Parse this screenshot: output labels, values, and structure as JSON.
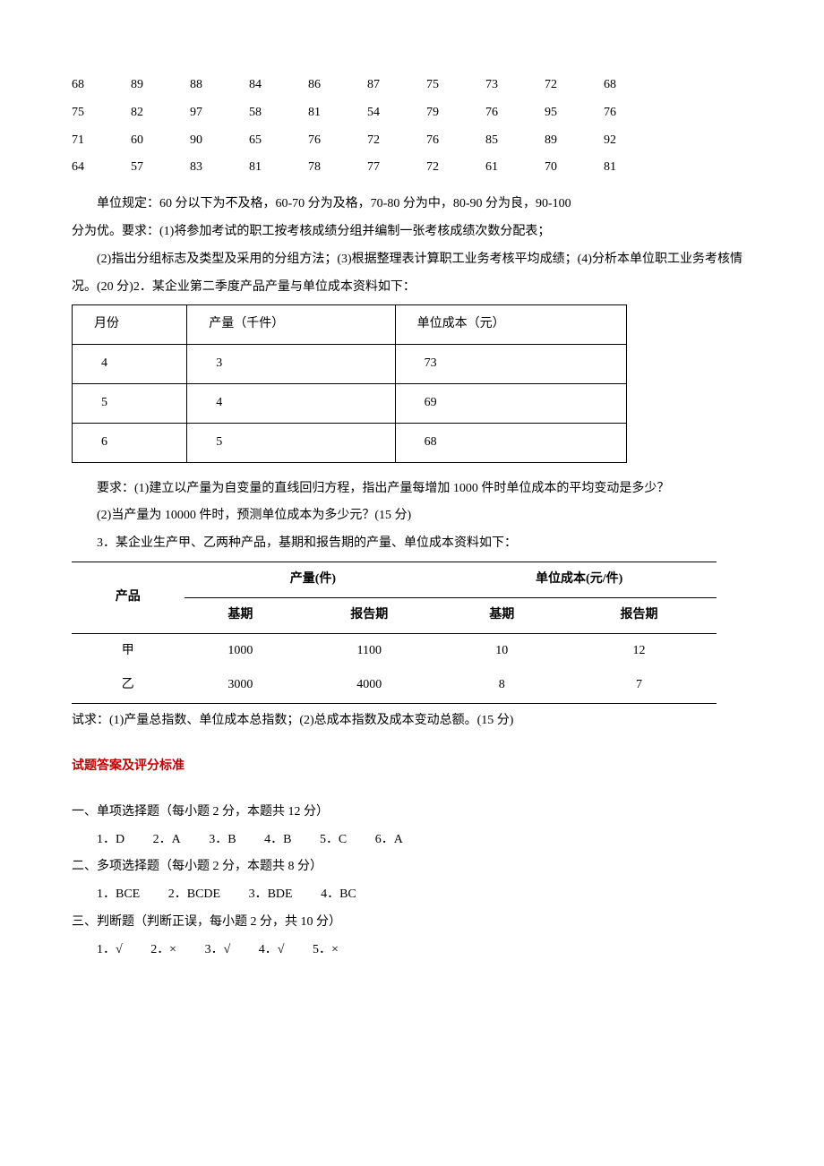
{
  "scores": {
    "rows": [
      [
        "68",
        "89",
        "88",
        "84",
        "86",
        "87",
        "75",
        "73",
        "72",
        "68"
      ],
      [
        "75",
        "82",
        "97",
        "58",
        "81",
        "54",
        "79",
        "76",
        "95",
        "76"
      ],
      [
        "71",
        "60",
        "90",
        "65",
        "76",
        "72",
        "76",
        "85",
        "89",
        "92"
      ],
      [
        "64",
        "57",
        "83",
        "81",
        "78",
        "77",
        "72",
        "61",
        "70",
        "81"
      ]
    ]
  },
  "p1": "单位规定：60 分以下为不及格，60-70 分为及格，70-80 分为中，80-90 分为良，90-100",
  "p2": "分为优。要求：(1)将参加考试的职工按考核成绩分组并编制一张考核成绩次数分配表；",
  "p3": "(2)指出分组标志及类型及采用的分组方法；(3)根据整理表计算职工业务考核平均成绩；(4)分析本单位职工业务考核情况。(20 分)2．某企业第二季度产品产量与单位成本资料如下：",
  "table1": {
    "headers": [
      "月份",
      "产量（千件）",
      "单位成本（元）"
    ],
    "rows": [
      [
        "4",
        "3",
        "73"
      ],
      [
        "5",
        "4",
        "69"
      ],
      [
        "6",
        "5",
        "68"
      ]
    ]
  },
  "p4": "要求：(1)建立以产量为自变量的直线回归方程，指出产量每增加 1000 件时单位成本的平均变动是多少？",
  "p5": "(2)当产量为 10000 件时，预测单位成本为多少元？(15 分)",
  "p6": "3．某企业生产甲、乙两种产品，基期和报告期的产量、单位成本资料如下：",
  "table2": {
    "h1": [
      "产品",
      "产量(件)",
      "单位成本(元/件)"
    ],
    "h2": [
      "基期",
      "报告期",
      "基期",
      "报告期"
    ],
    "rows": [
      [
        "甲",
        "1000",
        "1100",
        "10",
        "12"
      ],
      [
        "乙",
        "3000",
        "4000",
        "8",
        "7"
      ]
    ]
  },
  "p7": "试求：(1)产量总指数、单位成本总指数；(2)总成本指数及成本变动总额。(15 分)",
  "answer_title": "试题答案及评分标准",
  "sec1": "一、单项选择题（每小题 2 分，本题共 12 分）",
  "ans1": [
    "1．D",
    "2．A",
    "3．B",
    "4．B",
    "5．C",
    "6．A"
  ],
  "sec2": "二、多项选择题（每小题 2 分，本题共 8 分）",
  "ans2": [
    "1．BCE",
    "2．BCDE",
    "3．BDE",
    "4．BC"
  ],
  "sec3": "三、判断题（判断正误，每小题 2 分，共 10 分）",
  "ans3": [
    "1．√",
    "2．×",
    "3．√",
    "4．√",
    "5．×"
  ]
}
